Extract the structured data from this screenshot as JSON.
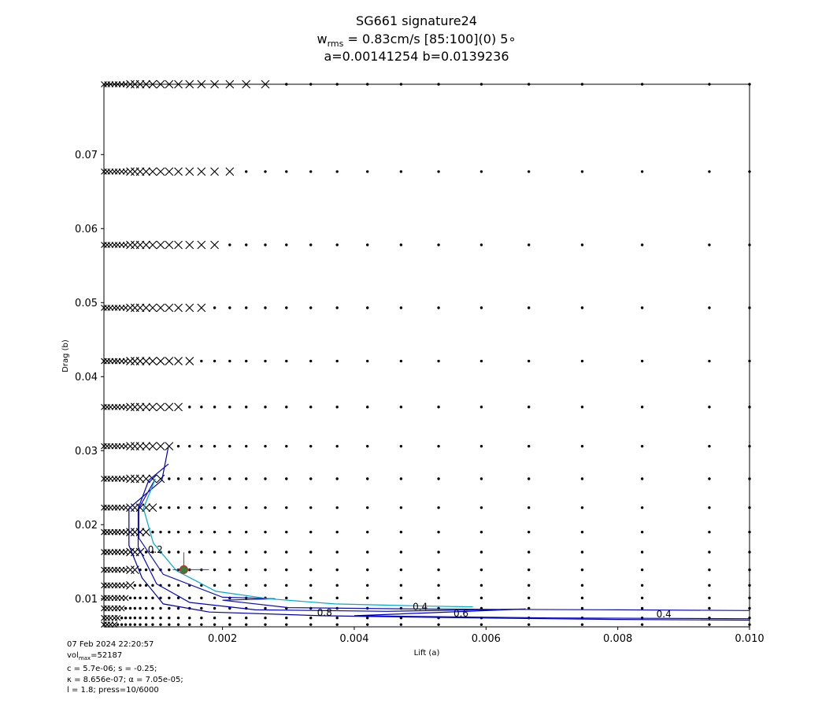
{
  "chart_data": {
    "type": "scatter",
    "title": "SG661 signature24",
    "subtitle_prefix": "w",
    "subtitle_sub": "rms",
    "subtitle_rest": " = 0.83cm/s [85:100](0) 5∘",
    "params_line": "a=0.00141254 b=0.0139236",
    "xlabel": "Lift (a)",
    "ylabel": "Drag (b)",
    "xlim": [
      0.0002,
      0.01
    ],
    "ylim": [
      0.0062,
      0.0795
    ],
    "x_ticks": [
      0.002,
      0.004,
      0.006,
      0.008,
      0.01
    ],
    "x_tick_labels": [
      "0.002",
      "0.004",
      "0.006",
      "0.008",
      "0.010"
    ],
    "y_ticks": [
      0.01,
      0.02,
      0.03,
      0.04,
      0.05,
      0.06,
      0.07
    ],
    "y_tick_labels": [
      "0.01",
      "0.02",
      "0.03",
      "0.04",
      "0.05",
      "0.06",
      "0.07"
    ],
    "grid": false,
    "grid_x": [
      0.0002,
      0.00025,
      0.0003,
      0.00036,
      0.00041,
      0.00047,
      0.00053,
      0.0006,
      0.00067,
      0.00075,
      0.00084,
      0.00094,
      0.00106,
      0.00119,
      0.00133,
      0.0015,
      0.00168,
      0.00188,
      0.00211,
      0.00236,
      0.00265,
      0.00297,
      0.00334,
      0.00374,
      0.0042,
      0.00471,
      0.00528,
      0.00593,
      0.00665,
      0.00746,
      0.00837,
      0.00939,
      0.01
    ],
    "grid_y": [
      0.0795,
      0.0677,
      0.0578,
      0.0493,
      0.0421,
      0.0359,
      0.0306,
      0.0262,
      0.0223,
      0.019,
      0.0163,
      0.0139,
      0.0118,
      0.0101,
      0.0087,
      0.0074,
      0.0065
    ],
    "failed_cutoff_x": [
      0.00265,
      0.00211,
      0.00188,
      0.00168,
      0.0015,
      0.00133,
      0.00119,
      0.00106,
      0.00094,
      0.00084,
      0.00075,
      0.00067,
      0.0006,
      0.00053,
      0.00047,
      0.00041,
      0.00036
    ],
    "contours": [
      {
        "level": "0.4",
        "color": "#0000aa",
        "points": [
          [
            0.00118,
            0.0306
          ],
          [
            0.00108,
            0.026
          ],
          [
            0.00058,
            0.0222
          ],
          [
            0.00058,
            0.0172
          ],
          [
            0.00078,
            0.0128
          ],
          [
            0.0011,
            0.0093
          ],
          [
            0.0018,
            0.0082
          ],
          [
            0.0035,
            0.0077
          ],
          [
            0.0058,
            0.0074
          ],
          [
            0.008,
            0.0072
          ],
          [
            0.01,
            0.0071
          ]
        ]
      },
      {
        "level": "0.6",
        "color": "#0000cc",
        "points": [
          [
            0.00118,
            0.0282
          ],
          [
            0.00088,
            0.026
          ],
          [
            0.00072,
            0.0222
          ],
          [
            0.00072,
            0.017
          ],
          [
            0.001,
            0.012
          ],
          [
            0.0015,
            0.0095
          ],
          [
            0.0025,
            0.0085
          ],
          [
            0.0045,
            0.0083
          ],
          [
            0.0066,
            0.0086
          ],
          [
            0.004,
            0.0077
          ],
          [
            0.007,
            0.0074
          ],
          [
            0.01,
            0.0073
          ]
        ]
      },
      {
        "level": "0.8",
        "color": "#1010bb",
        "points": [
          [
            0.00098,
            0.0262
          ],
          [
            0.00073,
            0.0222
          ],
          [
            0.00073,
            0.0182
          ],
          [
            0.0011,
            0.0133
          ],
          [
            0.002,
            0.0102
          ],
          [
            0.0028,
            0.01
          ],
          [
            0.002,
            0.0098
          ],
          [
            0.003,
            0.0088
          ],
          [
            0.005,
            0.0086
          ],
          [
            0.008,
            0.0085
          ],
          [
            0.01,
            0.0084
          ]
        ]
      },
      {
        "level": "0.2",
        "color": "#00aacc",
        "points": [
          [
            0.00098,
            0.0262
          ],
          [
            0.0008,
            0.0222
          ],
          [
            0.00095,
            0.0175
          ],
          [
            0.0013,
            0.0138
          ],
          [
            0.0019,
            0.011
          ],
          [
            0.0027,
            0.01
          ],
          [
            0.0037,
            0.0093
          ],
          [
            0.0051,
            0.009
          ],
          [
            0.0058,
            0.0089
          ]
        ]
      }
    ],
    "contour_labels": [
      {
        "text": "0.2",
        "x": 0.00098,
        "y": 0.0162
      },
      {
        "text": "0.8",
        "x": 0.00355,
        "y": 0.0077
      },
      {
        "text": "0.4",
        "x": 0.005,
        "y": 0.0085
      },
      {
        "text": "0.6",
        "x": 0.00562,
        "y": 0.0076
      },
      {
        "text": "0.4",
        "x": 0.0087,
        "y": 0.0075
      }
    ],
    "best_point": {
      "x": 0.00141254,
      "y": 0.0139236,
      "color": "#3a7f3a"
    }
  },
  "footnote": {
    "timestamp": "07 Feb 2024 22:20:57",
    "vol_prefix": "vol",
    "vol_sub": "max",
    "vol_rest": "=52187",
    "line3": "c = 5.7e-06; s = -0.25;",
    "line4": "κ = 8.656e-07; α = 7.05e-05;",
    "line5": "l = 1.8; press=10/6000"
  }
}
